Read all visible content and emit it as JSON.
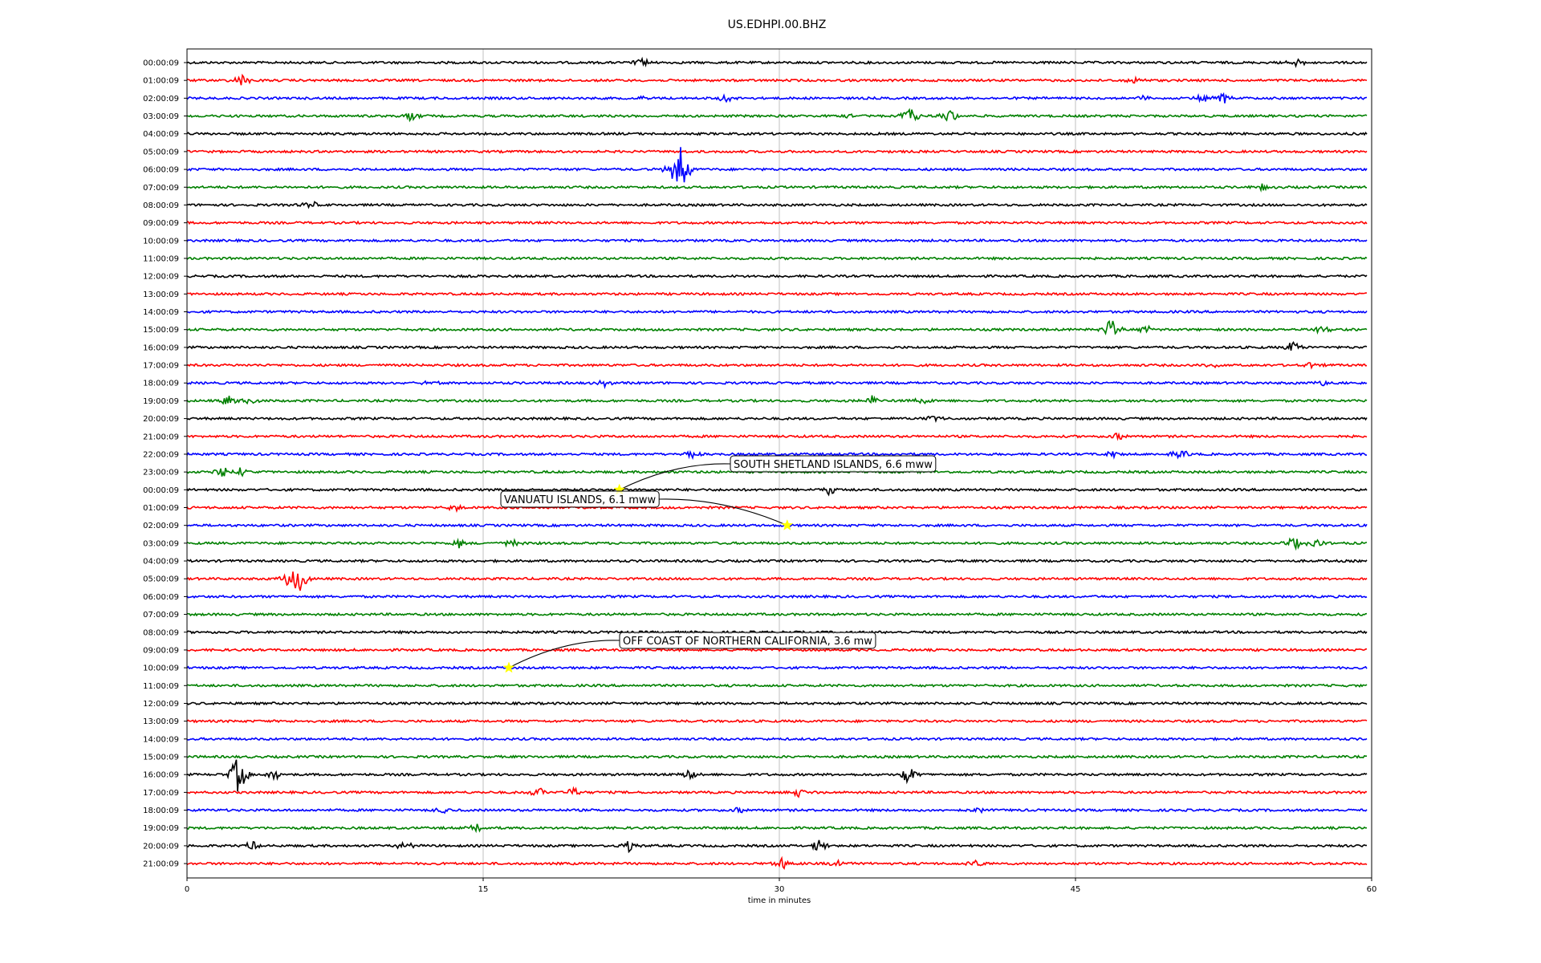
{
  "chart_data": {
    "type": "line",
    "title": "US.EDHPI.00.BHZ",
    "xlabel": "time in minutes",
    "ylabel": "",
    "xlim": [
      0,
      60
    ],
    "xticks": [
      0,
      15,
      30,
      45,
      60
    ],
    "grid": "vertical",
    "trace_colors": [
      "#000000",
      "#ff0000",
      "#0000ff",
      "#008000"
    ],
    "rows": [
      {
        "label": "00:00:09",
        "events": [
          [
            23.0,
            6
          ],
          [
            56.2,
            6
          ]
        ]
      },
      {
        "label": "01:00:09",
        "events": [
          [
            2.8,
            8
          ],
          [
            48.0,
            4
          ]
        ]
      },
      {
        "label": "02:00:09",
        "events": [
          [
            23.0,
            4
          ],
          [
            27.2,
            5
          ],
          [
            48.5,
            4
          ],
          [
            51.5,
            5
          ],
          [
            52.5,
            6
          ]
        ]
      },
      {
        "label": "03:00:09",
        "events": [
          [
            11.3,
            6
          ],
          [
            33.5,
            5
          ],
          [
            36.6,
            10
          ],
          [
            38.6,
            8
          ]
        ]
      },
      {
        "label": "04:00:09",
        "events": []
      },
      {
        "label": "05:00:09",
        "events": []
      },
      {
        "label": "06:00:09",
        "events": [
          [
            25.0,
            30
          ],
          [
            24.4,
            6
          ]
        ]
      },
      {
        "label": "07:00:09",
        "events": [
          [
            54.5,
            4
          ]
        ]
      },
      {
        "label": "08:00:09",
        "events": [
          [
            6.3,
            5
          ]
        ]
      },
      {
        "label": "09:00:09",
        "events": []
      },
      {
        "label": "10:00:09",
        "events": []
      },
      {
        "label": "11:00:09",
        "events": []
      },
      {
        "label": "12:00:09",
        "events": []
      },
      {
        "label": "13:00:09",
        "events": []
      },
      {
        "label": "14:00:09",
        "events": []
      },
      {
        "label": "15:00:09",
        "events": [
          [
            46.8,
            16
          ],
          [
            48.5,
            5
          ],
          [
            57.5,
            7
          ]
        ]
      },
      {
        "label": "16:00:09",
        "events": [
          [
            56.0,
            7
          ]
        ]
      },
      {
        "label": "17:00:09",
        "events": [
          [
            52.0,
            4
          ],
          [
            57.0,
            4
          ]
        ]
      },
      {
        "label": "18:00:09",
        "events": [
          [
            12.3,
            4
          ],
          [
            21.2,
            4
          ],
          [
            57.5,
            4
          ]
        ]
      },
      {
        "label": "19:00:09",
        "events": [
          [
            2.1,
            7
          ],
          [
            3.2,
            5
          ],
          [
            34.7,
            6
          ],
          [
            37.2,
            5
          ]
        ]
      },
      {
        "label": "20:00:09",
        "events": [
          [
            37.8,
            4
          ]
        ]
      },
      {
        "label": "21:00:09",
        "events": [
          [
            47.2,
            5
          ]
        ]
      },
      {
        "label": "22:00:09",
        "events": [
          [
            25.5,
            5
          ],
          [
            47.0,
            5
          ],
          [
            50.3,
            5
          ]
        ]
      },
      {
        "label": "23:00:09",
        "events": [
          [
            1.8,
            8
          ],
          [
            2.8,
            6
          ]
        ]
      },
      {
        "label": "00:00:09",
        "events": [
          [
            32.5,
            6
          ]
        ]
      },
      {
        "label": "01:00:09",
        "events": [
          [
            13.5,
            4
          ]
        ]
      },
      {
        "label": "02:00:09",
        "events": []
      },
      {
        "label": "03:00:09",
        "events": [
          [
            13.8,
            6
          ],
          [
            16.5,
            5
          ],
          [
            56.0,
            9
          ],
          [
            57.2,
            7
          ]
        ]
      },
      {
        "label": "04:00:09",
        "events": []
      },
      {
        "label": "05:00:09",
        "events": [
          [
            5.6,
            24
          ],
          [
            5.0,
            6
          ]
        ]
      },
      {
        "label": "06:00:09",
        "events": []
      },
      {
        "label": "07:00:09",
        "events": []
      },
      {
        "label": "08:00:09",
        "events": []
      },
      {
        "label": "09:00:09",
        "events": []
      },
      {
        "label": "10:00:09",
        "events": []
      },
      {
        "label": "11:00:09",
        "events": []
      },
      {
        "label": "12:00:09",
        "events": []
      },
      {
        "label": "13:00:09",
        "events": []
      },
      {
        "label": "14:00:09",
        "events": []
      },
      {
        "label": "15:00:09",
        "events": []
      },
      {
        "label": "16:00:09",
        "events": [
          [
            2.6,
            24
          ],
          [
            4.4,
            7
          ],
          [
            25.5,
            7
          ],
          [
            36.5,
            12
          ]
        ]
      },
      {
        "label": "17:00:09",
        "events": [
          [
            17.8,
            6
          ],
          [
            19.5,
            6
          ],
          [
            31.0,
            5
          ]
        ]
      },
      {
        "label": "18:00:09",
        "events": [
          [
            13.0,
            5
          ],
          [
            28.0,
            4
          ],
          [
            40.0,
            4
          ]
        ]
      },
      {
        "label": "19:00:09",
        "events": [
          [
            14.7,
            4
          ]
        ]
      },
      {
        "label": "20:00:09",
        "events": [
          [
            3.4,
            6
          ],
          [
            11.0,
            5
          ],
          [
            22.4,
            7
          ],
          [
            32.0,
            9
          ]
        ]
      },
      {
        "label": "21:00:09",
        "events": [
          [
            30.2,
            8
          ],
          [
            33.0,
            6
          ],
          [
            40.0,
            5
          ]
        ]
      }
    ],
    "annotations": [
      {
        "text": "SOUTH SHETLAND ISLANDS, 6.6 mww",
        "row": 24,
        "x": 21.9
      },
      {
        "text": "VANUATU ISLANDS, 6.1 mww",
        "row": 26,
        "x": 30.4
      },
      {
        "text": "OFF COAST OF NORTHERN CALIFORNIA, 3.6 mw",
        "row": 34,
        "x": 16.3
      }
    ],
    "marker_color": "#ffff00"
  }
}
